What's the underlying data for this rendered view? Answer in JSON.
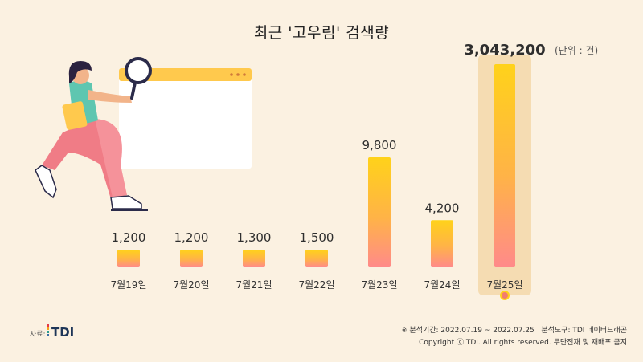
{
  "title": "최근 '고우림' 검색량",
  "unit_label": "(단위 : 건)",
  "source_label": "자료:",
  "logo_text": "TDI",
  "footer": {
    "note_mark": "※",
    "analysis_period": "분석기간: 2022.07.19 ~ 2022.07.25",
    "analysis_tool": "분석도구: TDI 데이터드래곤",
    "copyright": "Copyright ⓒ TDI. All rights reserved. 무단전재 및 재배포 금지"
  },
  "chart_data": {
    "type": "bar",
    "title": "최근 '고우림' 검색량",
    "xlabel": "",
    "ylabel": "",
    "categories": [
      "7월19일",
      "7월20일",
      "7월21일",
      "7월22일",
      "7월23일",
      "7월24일",
      "7월25일"
    ],
    "values": [
      1200,
      1200,
      1300,
      1500,
      9800,
      4200,
      3043200
    ],
    "value_labels": [
      "1,200",
      "1,200",
      "1,300",
      "1,500",
      "9,800",
      "4,200",
      "3,043,200"
    ],
    "highlighted_category": "7월25일",
    "scale": "non-linear (last bar not to scale)",
    "grid": false,
    "legend": "none",
    "colors": {
      "bar_top": "#ffd21a",
      "bar_bottom": "#ff8a8a",
      "highlight_panel": "#f5dcb2",
      "highlight_dot": "#f27d6e",
      "label": "#2e2e2e",
      "tick": "#333333"
    }
  }
}
